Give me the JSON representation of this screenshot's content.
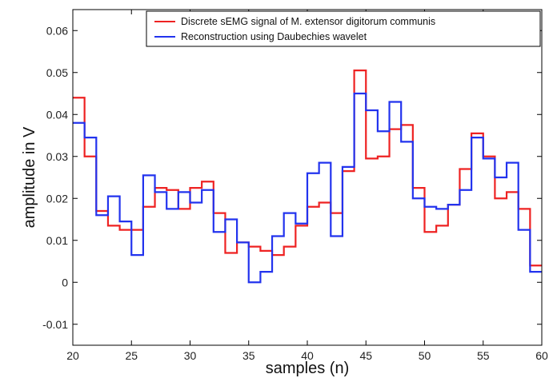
{
  "chart_data": {
    "type": "line",
    "style": "step",
    "xlabel": "samples (n)",
    "ylabel": "amplitude in V",
    "xlim": [
      20,
      60
    ],
    "ylim": [
      -0.015,
      0.065
    ],
    "xticks": [
      20,
      25,
      30,
      35,
      40,
      45,
      50,
      55,
      60
    ],
    "yticks": [
      -0.01,
      0,
      0.01,
      0.02,
      0.03,
      0.04,
      0.05,
      0.06
    ],
    "ytick_labels": [
      "-0.01",
      "0",
      "0.01",
      "0.02",
      "0.03",
      "0.04",
      "0.05",
      "0.06"
    ],
    "grid": false,
    "legend_position": "top-right",
    "x": [
      20,
      21,
      22,
      23,
      24,
      25,
      26,
      27,
      28,
      29,
      30,
      31,
      32,
      33,
      34,
      35,
      36,
      37,
      38,
      39,
      40,
      41,
      42,
      43,
      44,
      45,
      46,
      47,
      48,
      49,
      50,
      51,
      52,
      53,
      54,
      55,
      56,
      57,
      58,
      59
    ],
    "series": [
      {
        "name": "Discrete sEMG signal of M. extensor digitorum communis",
        "color": "#ee2222",
        "values": [
          0.044,
          0.03,
          0.017,
          0.0135,
          0.0125,
          0.0125,
          0.018,
          0.0225,
          0.022,
          0.0175,
          0.0225,
          0.024,
          0.0165,
          0.007,
          0.0095,
          0.0085,
          0.0075,
          0.0065,
          0.0085,
          0.0135,
          0.018,
          0.019,
          0.0165,
          0.0265,
          0.0505,
          0.0295,
          0.03,
          0.0365,
          0.0375,
          0.0225,
          0.012,
          0.0135,
          0.0185,
          0.027,
          0.0355,
          0.03,
          0.02,
          0.0215,
          0.0175,
          0.004
        ]
      },
      {
        "name": "Reconstruction using Daubechies wavelet",
        "color": "#2233ee",
        "values": [
          0.038,
          0.0345,
          0.016,
          0.0205,
          0.0145,
          0.0065,
          0.0255,
          0.0215,
          0.0175,
          0.0215,
          0.019,
          0.022,
          0.012,
          0.015,
          0.0095,
          0.0,
          0.0025,
          0.011,
          0.0165,
          0.014,
          0.026,
          0.0285,
          0.011,
          0.0275,
          0.045,
          0.041,
          0.036,
          0.043,
          0.0335,
          0.02,
          0.018,
          0.0175,
          0.0185,
          0.022,
          0.0345,
          0.0295,
          0.025,
          0.0285,
          0.0125,
          0.0025
        ]
      }
    ]
  }
}
